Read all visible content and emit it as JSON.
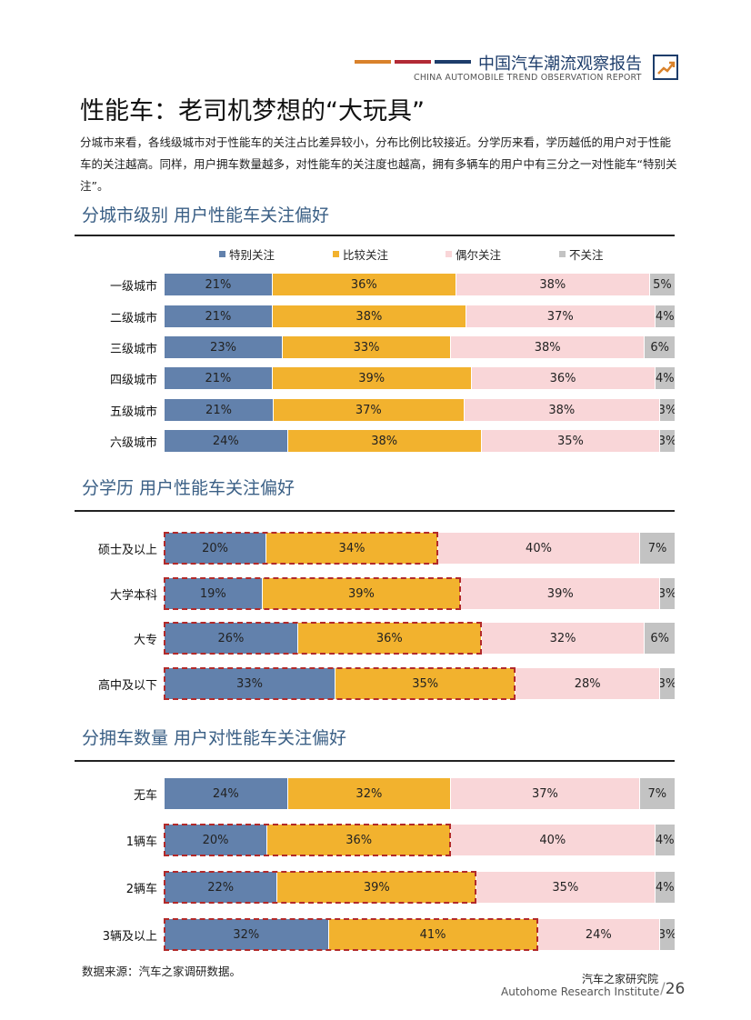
{
  "header": {
    "title": "中国汽车潮流观察报告",
    "subtitle": "CHINA AUTOMOBILE TREND OBSERVATION REPORT",
    "bar_colors": [
      "#d9822b",
      "#b22a35",
      "#1d3d6b"
    ],
    "logo_icon": "trend-chart-icon"
  },
  "page": {
    "title": "性能车：老司机梦想的“大玩具”",
    "intro": "分城市来看，各线级城市对于性能车的关注占比差异较小，分布比例比较接近。分学历来看，学历越低的用户对于性能车的关注越高。同样，用户拥车数量越多，对性能车的关注度也越高，拥有多辆车的用户中有三分之一对性能车“特别关注”。"
  },
  "legend": {
    "items": [
      "特别关注",
      "比较关注",
      "偶尔关注",
      "不关注"
    ],
    "colors": [
      "#6281ac",
      "#f2b22e",
      "#f9d6d8",
      "#c3c3c3"
    ]
  },
  "chart_data": [
    {
      "type": "bar",
      "orientation": "horizontal",
      "stacked": true,
      "title": "分城市级别 用户性能车关注偏好",
      "categories": [
        "一级城市",
        "二级城市",
        "三级城市",
        "四级城市",
        "五级城市",
        "六级城市"
      ],
      "series": [
        {
          "name": "特别关注",
          "values": [
            21,
            21,
            23,
            21,
            21,
            24
          ]
        },
        {
          "name": "比较关注",
          "values": [
            36,
            38,
            33,
            39,
            37,
            38
          ]
        },
        {
          "name": "偶尔关注",
          "values": [
            38,
            37,
            38,
            36,
            38,
            35
          ]
        },
        {
          "name": "不关注",
          "values": [
            5,
            4,
            6,
            4,
            3,
            3
          ]
        }
      ],
      "highlighted": [],
      "unit": "%"
    },
    {
      "type": "bar",
      "orientation": "horizontal",
      "stacked": true,
      "title": "分学历 用户性能车关注偏好",
      "categories": [
        "硕士及以上",
        "大学本科",
        "大专",
        "高中及以下"
      ],
      "series": [
        {
          "name": "特别关注",
          "values": [
            20,
            19,
            26,
            33
          ]
        },
        {
          "name": "比较关注",
          "values": [
            34,
            39,
            36,
            35
          ]
        },
        {
          "name": "偶尔关注",
          "values": [
            40,
            39,
            32,
            28
          ]
        },
        {
          "name": "不关注",
          "values": [
            7,
            3,
            6,
            3
          ]
        }
      ],
      "highlighted": [
        0,
        1,
        2,
        3
      ],
      "unit": "%"
    },
    {
      "type": "bar",
      "orientation": "horizontal",
      "stacked": true,
      "title": "分拥车数量 用户对性能车关注偏好",
      "categories": [
        "无车",
        "1辆车",
        "2辆车",
        "3辆及以上"
      ],
      "series": [
        {
          "name": "特别关注",
          "values": [
            24,
            20,
            22,
            32
          ]
        },
        {
          "name": "比较关注",
          "values": [
            32,
            36,
            39,
            41
          ]
        },
        {
          "name": "偶尔关注",
          "values": [
            37,
            40,
            35,
            24
          ]
        },
        {
          "name": "不关注",
          "values": [
            7,
            4,
            4,
            3
          ]
        }
      ],
      "highlighted": [
        1,
        2,
        3
      ],
      "unit": "%"
    }
  ],
  "footer": {
    "source": "数据来源：汽车之家调研数据。",
    "org_cn": "汽车之家研究院",
    "org_en": "Autohome Research Institute",
    "page_number": "26"
  }
}
